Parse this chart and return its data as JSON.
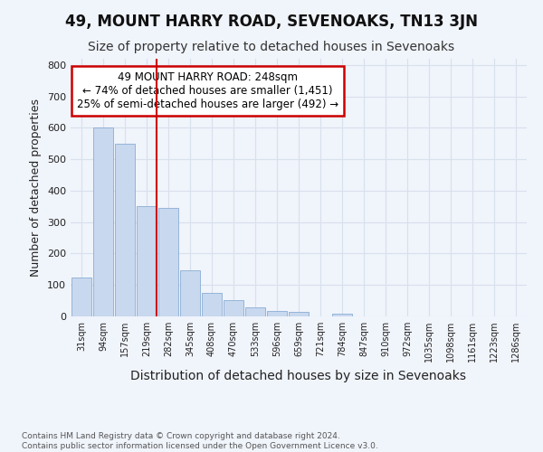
{
  "title": "49, MOUNT HARRY ROAD, SEVENOAKS, TN13 3JN",
  "subtitle": "Size of property relative to detached houses in Sevenoaks",
  "xlabel": "Distribution of detached houses by size in Sevenoaks",
  "ylabel": "Number of detached properties",
  "categories": [
    "31sqm",
    "94sqm",
    "157sqm",
    "219sqm",
    "282sqm",
    "345sqm",
    "408sqm",
    "470sqm",
    "533sqm",
    "596sqm",
    "659sqm",
    "721sqm",
    "784sqm",
    "847sqm",
    "910sqm",
    "972sqm",
    "1035sqm",
    "1098sqm",
    "1161sqm",
    "1223sqm",
    "1286sqm"
  ],
  "values": [
    125,
    600,
    550,
    350,
    345,
    148,
    75,
    52,
    30,
    17,
    14,
    0,
    8,
    0,
    0,
    0,
    0,
    0,
    0,
    0,
    0
  ],
  "bar_color": "#c8d8ee",
  "bar_edge_color": "#8aadd4",
  "vline_color": "#cc0000",
  "annotation_line1": "49 MOUNT HARRY ROAD: 248sqm",
  "annotation_line2": "← 74% of detached houses are smaller (1,451)",
  "annotation_line3": "25% of semi-detached houses are larger (492) →",
  "annotation_box_color": "#cc0000",
  "ylim": [
    0,
    820
  ],
  "yticks": [
    0,
    100,
    200,
    300,
    400,
    500,
    600,
    700,
    800
  ],
  "footer_line1": "Contains HM Land Registry data © Crown copyright and database right 2024.",
  "footer_line2": "Contains public sector information licensed under the Open Government Licence v3.0.",
  "bg_color": "#f0f4fb",
  "plot_bg_color": "#f0f4fb",
  "grid_color": "#d8e0ec",
  "title_fontsize": 12,
  "subtitle_fontsize": 10,
  "ylabel_fontsize": 9,
  "xlabel_fontsize": 10
}
